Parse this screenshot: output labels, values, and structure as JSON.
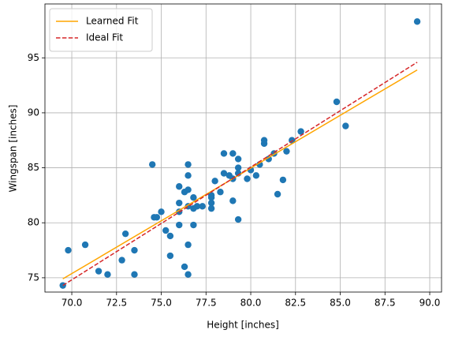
{
  "chart_data": {
    "type": "scatter",
    "xlabel": "Height [inches]",
    "ylabel": "Wingspan [inches]",
    "xlim": [
      68.5,
      90.66
    ],
    "ylim": [
      73.7,
      99.9
    ],
    "xticks": [
      {
        "value": 70,
        "label": "70.0"
      },
      {
        "value": 72.5,
        "label": "72.5"
      },
      {
        "value": 75,
        "label": "75.0"
      },
      {
        "value": 77.5,
        "label": "77.5"
      },
      {
        "value": 80,
        "label": "80.0"
      },
      {
        "value": 82.5,
        "label": "82.5"
      },
      {
        "value": 85,
        "label": "85.0"
      },
      {
        "value": 87.5,
        "label": "87.5"
      },
      {
        "value": 90,
        "label": "90.0"
      }
    ],
    "yticks": [
      75,
      80,
      85,
      90,
      95
    ],
    "grid": true,
    "legend": "upper left",
    "points": {
      "color": "#1f77b4",
      "x": [
        69.5,
        69.8,
        70.75,
        71.5,
        72,
        72.8,
        73,
        73.5,
        73.5,
        74.5,
        74.6,
        74.75,
        75,
        75.25,
        75.5,
        75.5,
        76,
        76,
        76,
        76,
        76.3,
        76.3,
        76.5,
        76.5,
        76.5,
        76.5,
        76.5,
        76.5,
        76.8,
        76.8,
        76.8,
        77,
        77.3,
        77.8,
        77.8,
        77.8,
        77.8,
        78,
        78.3,
        78.5,
        78.5,
        78.8,
        79,
        79,
        79,
        79.3,
        79.3,
        79.3,
        79.3,
        79.8,
        80,
        80.3,
        80.5,
        80.75,
        80.75,
        81,
        81.3,
        81.5,
        81.8,
        82,
        82.3,
        82.8,
        84.8,
        85.3,
        89.3
      ],
      "y": [
        74.3,
        77.5,
        78,
        75.6,
        75.3,
        76.6,
        79,
        77.5,
        75.3,
        85.3,
        80.5,
        80.5,
        81,
        79.3,
        78.8,
        77,
        83.3,
        81.8,
        81,
        79.8,
        76,
        82.8,
        81.5,
        83,
        84.3,
        85.3,
        78,
        75.3,
        82.3,
        81.3,
        79.8,
        81.5,
        81.5,
        82.3,
        81.8,
        81.3,
        82.5,
        83.8,
        82.8,
        84.5,
        86.3,
        84.3,
        86.3,
        84,
        82,
        85.8,
        85,
        84.5,
        80.3,
        84,
        84.8,
        84.3,
        85.3,
        87.2,
        87.5,
        85.8,
        86.3,
        82.6,
        83.9,
        86.5,
        87.5,
        88.3,
        91,
        88.8,
        98.3
      ]
    },
    "lines": [
      {
        "name": "Learned Fit",
        "color": "#ffa500",
        "style": "solid",
        "x": [
          69.5,
          89.3
        ],
        "y": [
          74.9,
          93.9
        ]
      },
      {
        "name": "Ideal Fit",
        "color": "#d62728",
        "style": "dashed",
        "x": [
          69.5,
          89.3
        ],
        "y": [
          74.3,
          94.6
        ]
      }
    ]
  }
}
